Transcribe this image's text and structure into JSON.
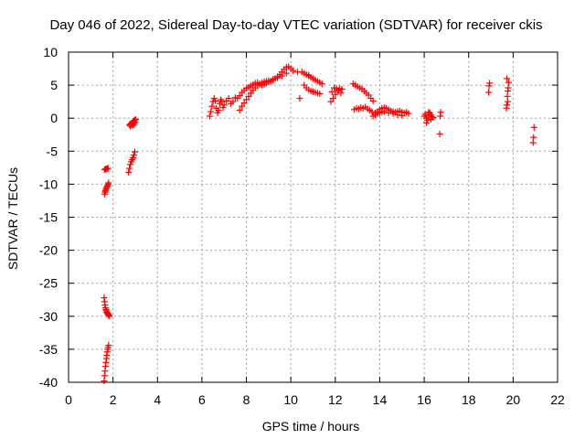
{
  "chart_data": {
    "type": "scatter",
    "title": "Day 046 of 2022, Sidereal Day-to-day VTEC variation (SDTVAR) for receiver ckis",
    "xlabel": "GPS time / hours",
    "ylabel": "SDTVAR / TECUs",
    "xlim": [
      0,
      22
    ],
    "ylim": [
      -40,
      10
    ],
    "xticks": [
      "0",
      "2",
      "4",
      "6",
      "8",
      "10",
      "12",
      "14",
      "16",
      "18",
      "20",
      "22"
    ],
    "yticks": [
      "-40",
      "-35",
      "-30",
      "-25",
      "-20",
      "-15",
      "-10",
      "-5",
      "0",
      "5",
      "10"
    ],
    "grid": true,
    "marker": "plus",
    "color": "#ff0000",
    "series": [
      {
        "name": "SDTVAR",
        "x": [
          1.6,
          1.62,
          1.64,
          1.66,
          1.68,
          1.7,
          1.72,
          1.74,
          1.76,
          1.78,
          1.8,
          1.82,
          1.84,
          1.6,
          1.62,
          1.64,
          1.66,
          1.68,
          1.7,
          1.72,
          1.74,
          1.76,
          1.78,
          1.8,
          1.62,
          1.66,
          1.7,
          1.74,
          1.78,
          1.62,
          1.64,
          1.66,
          1.68,
          1.7,
          1.72,
          1.74,
          1.76,
          1.78,
          1.8,
          2.7,
          2.74,
          2.78,
          2.82,
          2.86,
          2.9,
          2.94,
          2.98,
          2.78,
          2.82,
          2.86,
          2.9,
          2.94,
          2.98,
          3.02,
          2.74,
          2.76,
          2.8,
          2.84,
          2.88,
          2.92,
          2.96,
          3.0,
          6.35,
          6.4,
          6.45,
          6.5,
          6.55,
          6.6,
          6.65,
          6.7,
          6.75,
          6.8,
          6.85,
          6.9,
          6.95,
          7.0,
          7.1,
          7.2,
          7.3,
          7.4,
          7.5,
          7.6,
          7.7,
          7.8,
          7.9,
          8.0,
          8.1,
          8.2,
          8.3,
          8.4,
          8.5,
          8.6,
          8.7,
          8.8,
          8.9,
          9.0,
          9.1,
          9.2,
          9.3,
          9.4,
          9.5,
          9.6,
          9.7,
          9.8,
          9.9,
          10.0,
          10.1,
          7.7,
          7.8,
          7.9,
          8.0,
          8.1,
          8.2,
          8.3,
          8.4,
          8.5,
          8.6,
          8.7,
          8.8,
          8.9,
          9.0,
          9.2,
          9.4,
          9.6,
          9.8,
          10.5,
          10.6,
          10.7,
          10.8,
          10.9,
          11.0,
          11.1,
          11.2,
          11.3,
          11.4,
          10.6,
          10.7,
          10.8,
          10.9,
          11.0,
          11.1,
          11.2,
          11.3,
          10.3,
          10.4,
          10.8,
          11.0,
          11.8,
          11.9,
          12.0,
          12.1,
          12.2,
          12.3,
          11.85,
          11.95,
          12.05,
          12.15,
          12.25,
          12.8,
          12.9,
          13.0,
          13.1,
          13.2,
          13.3,
          13.4,
          13.5,
          13.6,
          13.7,
          12.85,
          12.95,
          13.05,
          13.15,
          13.25,
          13.35,
          13.45,
          13.55,
          13.65,
          13.8,
          13.9,
          14.0,
          14.1,
          14.2,
          14.3,
          14.4,
          14.5,
          14.6,
          14.7,
          14.8,
          14.9,
          15.0,
          15.1,
          15.2,
          15.3,
          13.7,
          13.8,
          13.9,
          14.0,
          14.1,
          14.2,
          14.4,
          14.6,
          14.8,
          15.0,
          16.0,
          16.05,
          16.1,
          16.15,
          16.2,
          16.25,
          16.3,
          16.35,
          16.4,
          16.1,
          16.2,
          16.3,
          16.7,
          16.72,
          16.74,
          18.9,
          18.92,
          18.94,
          19.7,
          19.72,
          19.74,
          19.76,
          19.78,
          19.8,
          19.72,
          19.76,
          20.9,
          20.92,
          20.94
        ],
        "y": [
          -27.2,
          -27.8,
          -28.3,
          -28.7,
          -29.0,
          -29.2,
          -29.4,
          -29.5,
          -29.6,
          -29.7,
          -29.8,
          -29.9,
          -30.0,
          -39.8,
          -39.0,
          -38.3,
          -37.6,
          -37.0,
          -36.4,
          -35.9,
          -35.4,
          -35.0,
          -34.7,
          -34.4,
          -7.8,
          -7.7,
          -7.7,
          -7.6,
          -7.6,
          -11.5,
          -11.2,
          -11.0,
          -10.8,
          -10.6,
          -10.5,
          -10.3,
          -10.2,
          -10.0,
          -9.8,
          -8.2,
          -7.6,
          -7.0,
          -6.6,
          -6.3,
          -6.0,
          -5.6,
          -5.1,
          -1.2,
          -0.9,
          -0.7,
          -0.5,
          -0.4,
          -0.3,
          -0.2,
          -1.0,
          -1.0,
          -0.8,
          -0.9,
          -1.1,
          -1.0,
          -0.8,
          -0.6,
          0.3,
          1.0,
          1.8,
          2.5,
          3.0,
          2.6,
          1.5,
          0.8,
          1.2,
          2.2,
          2.8,
          2.5,
          1.6,
          2.0,
          2.6,
          3.0,
          2.2,
          2.5,
          3.1,
          3.0,
          3.4,
          3.9,
          4.2,
          4.5,
          4.7,
          4.9,
          5.1,
          5.3,
          5.4,
          5.2,
          5.0,
          5.1,
          5.3,
          5.5,
          5.6,
          5.8,
          6.0,
          6.3,
          6.6,
          7.0,
          7.4,
          7.7,
          7.8,
          7.5,
          7.2,
          1.2,
          1.8,
          2.3,
          2.8,
          3.3,
          3.8,
          4.2,
          4.6,
          4.9,
          5.1,
          5.3,
          5.5,
          5.6,
          5.7,
          5.9,
          6.1,
          6.4,
          6.8,
          7.0,
          6.8,
          6.6,
          6.4,
          6.2,
          6.0,
          5.8,
          5.6,
          5.4,
          5.2,
          5.0,
          4.6,
          4.3,
          4.1,
          4.0,
          3.9,
          3.8,
          3.7,
          7.0,
          3.0,
          6.5,
          4.0,
          2.5,
          3.0,
          3.6,
          4.2,
          4.5,
          4.4,
          4.0,
          4.6,
          4.5,
          4.2,
          3.8,
          5.2,
          5.0,
          4.8,
          4.6,
          4.4,
          4.1,
          3.8,
          3.5,
          3.0,
          2.6,
          1.3,
          1.5,
          1.4,
          1.6,
          1.5,
          1.7,
          1.4,
          1.2,
          1.0,
          0.8,
          1.0,
          1.3,
          1.5,
          1.6,
          1.5,
          1.3,
          1.1,
          1.0,
          0.9,
          1.0,
          1.1,
          0.9,
          0.8,
          0.9,
          0.7,
          0.3,
          0.5,
          0.7,
          0.8,
          0.9,
          1.0,
          0.8,
          0.7,
          0.5,
          0.4,
          0.3,
          0.6,
          0.0,
          -0.3,
          0.4,
          0.8,
          -0.2,
          0.2,
          0.1,
          -0.7,
          0.9,
          0.5,
          -2.4,
          0.3,
          0.9,
          3.9,
          4.9,
          5.3,
          1.5,
          2.0,
          3.3,
          4.1,
          4.6,
          5.4,
          6.0,
          2.5,
          -3.7,
          -2.9,
          -1.4
        ]
      }
    ]
  }
}
